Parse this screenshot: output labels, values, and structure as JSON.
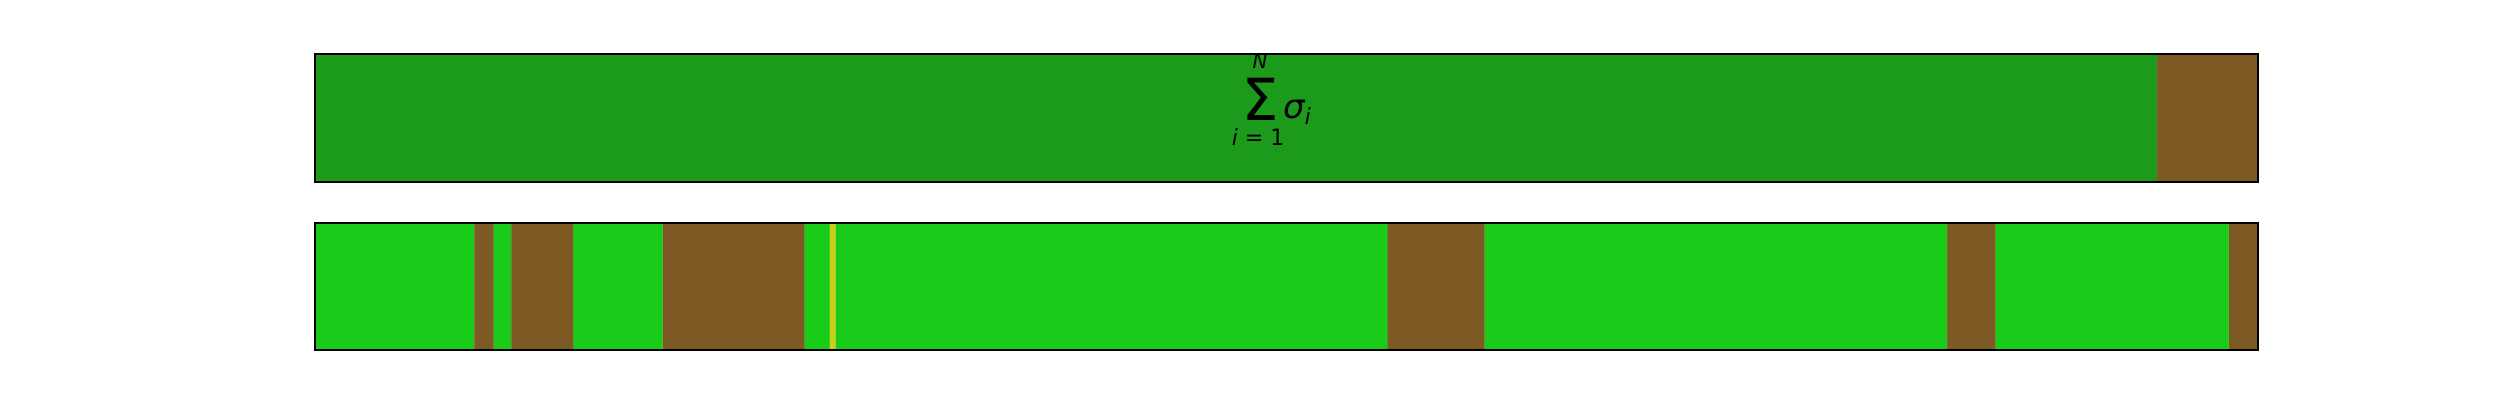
{
  "chart_data": [
    {
      "type": "bar",
      "orientation": "horizontal-strip",
      "title": "Σ_{i=1}^{N} σ_i",
      "xlim": [
        0,
        1
      ],
      "grid": false,
      "legend": "none",
      "segments": [
        {
          "start": 0.0,
          "end": 0.948,
          "color": "#1c9a1c"
        },
        {
          "start": 0.948,
          "end": 1.0,
          "color": "#7d5a23"
        }
      ]
    },
    {
      "type": "bar",
      "orientation": "horizontal-strip",
      "xlim": [
        0,
        1
      ],
      "grid": false,
      "legend": "none",
      "segments": [
        {
          "start": 0.0,
          "end": 0.082,
          "color": "#19cc19"
        },
        {
          "start": 0.082,
          "end": 0.092,
          "color": "#7d5a23"
        },
        {
          "start": 0.092,
          "end": 0.101,
          "color": "#19cc19"
        },
        {
          "start": 0.101,
          "end": 0.133,
          "color": "#7d5a23"
        },
        {
          "start": 0.133,
          "end": 0.179,
          "color": "#19cc19"
        },
        {
          "start": 0.179,
          "end": 0.252,
          "color": "#7d5a23"
        },
        {
          "start": 0.252,
          "end": 0.265,
          "color": "#19cc19"
        },
        {
          "start": 0.265,
          "end": 0.268,
          "color": "#cccc19"
        },
        {
          "start": 0.268,
          "end": 0.552,
          "color": "#19cc19"
        },
        {
          "start": 0.552,
          "end": 0.602,
          "color": "#7d5a23"
        },
        {
          "start": 0.602,
          "end": 0.84,
          "color": "#19cc19"
        },
        {
          "start": 0.84,
          "end": 0.865,
          "color": "#7d5a23"
        },
        {
          "start": 0.865,
          "end": 0.985,
          "color": "#19cc19"
        },
        {
          "start": 0.985,
          "end": 1.0,
          "color": "#7d5a23"
        }
      ]
    }
  ]
}
